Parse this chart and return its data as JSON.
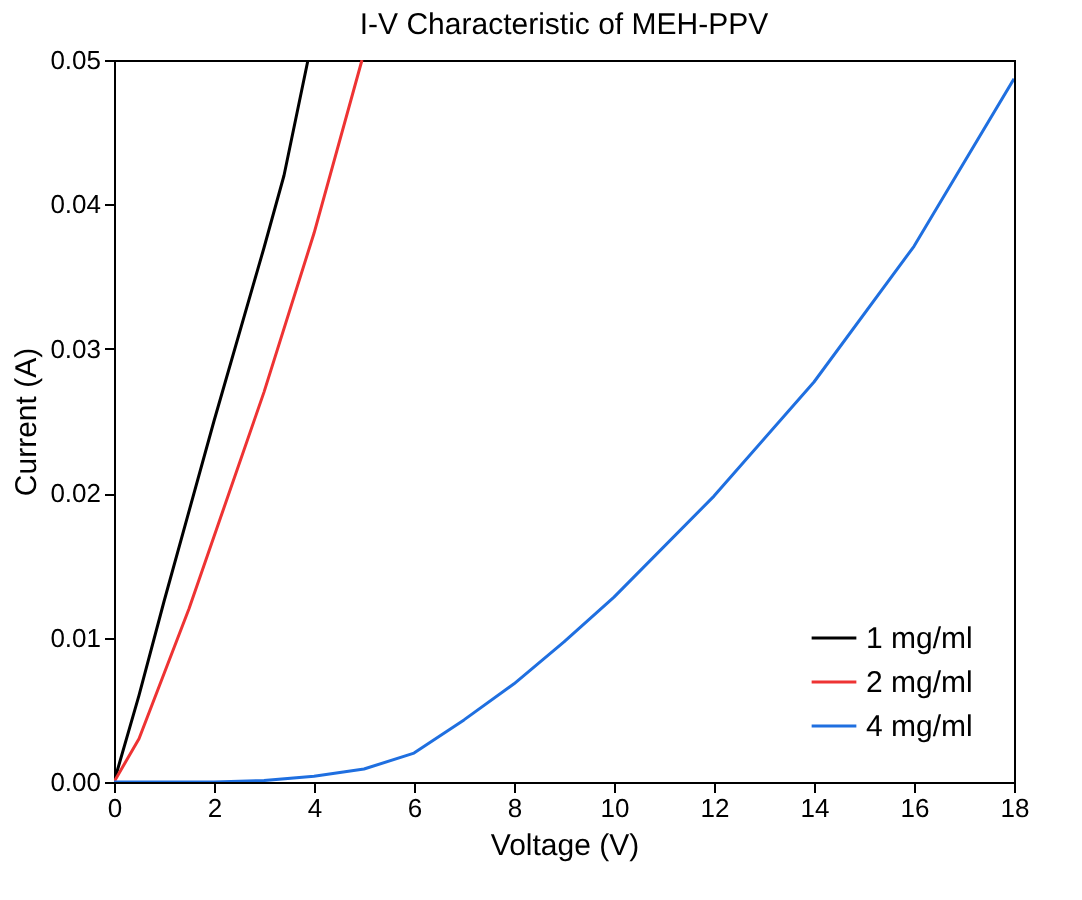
{
  "chart_data": {
    "type": "line",
    "title": "I-V Characteristic of MEH-PPV",
    "xlabel": "Voltage (V)",
    "ylabel": "Current (A)",
    "series": [
      {
        "name": "1 mg/ml",
        "color": "#000000",
        "x": [
          0,
          0.5,
          1,
          2,
          3,
          3.4,
          3.88
        ],
        "values": [
          0,
          0.006,
          0.0125,
          0.025,
          0.037,
          0.042,
          0.05
        ]
      },
      {
        "name": "2 mg/ml",
        "color": "#ee3333",
        "x": [
          0,
          0.5,
          1,
          1.5,
          2,
          3,
          4,
          4.96
        ],
        "values": [
          0,
          0.003,
          0.0075,
          0.012,
          0.017,
          0.027,
          0.038,
          0.05
        ]
      },
      {
        "name": "4 mg/ml",
        "color": "#1f6fe0",
        "x": [
          0,
          2,
          3,
          4,
          5,
          6,
          7,
          8,
          9,
          10,
          12,
          14,
          16,
          18
        ],
        "values": [
          0,
          0,
          0.0001,
          0.0004,
          0.0009,
          0.002,
          0.0043,
          0.0068,
          0.0097,
          0.0128,
          0.0198,
          0.0277,
          0.0371,
          0.0487
        ]
      }
    ],
    "xlim": [
      0,
      18
    ],
    "xticks": [
      0,
      2,
      4,
      6,
      8,
      10,
      12,
      14,
      16,
      18
    ],
    "ylim": [
      0,
      0.05
    ],
    "yticks": [
      {
        "value": 0,
        "label": "0.00"
      },
      {
        "value": 0.01,
        "label": "0.01"
      },
      {
        "value": 0.02,
        "label": "0.02"
      },
      {
        "value": 0.03,
        "label": "0.03"
      },
      {
        "value": 0.04,
        "label": "0.04"
      },
      {
        "value": 0.05,
        "label": "0.05"
      }
    ],
    "grid": false,
    "legend": "bottom right",
    "line_style": "solid",
    "marker": "none"
  }
}
